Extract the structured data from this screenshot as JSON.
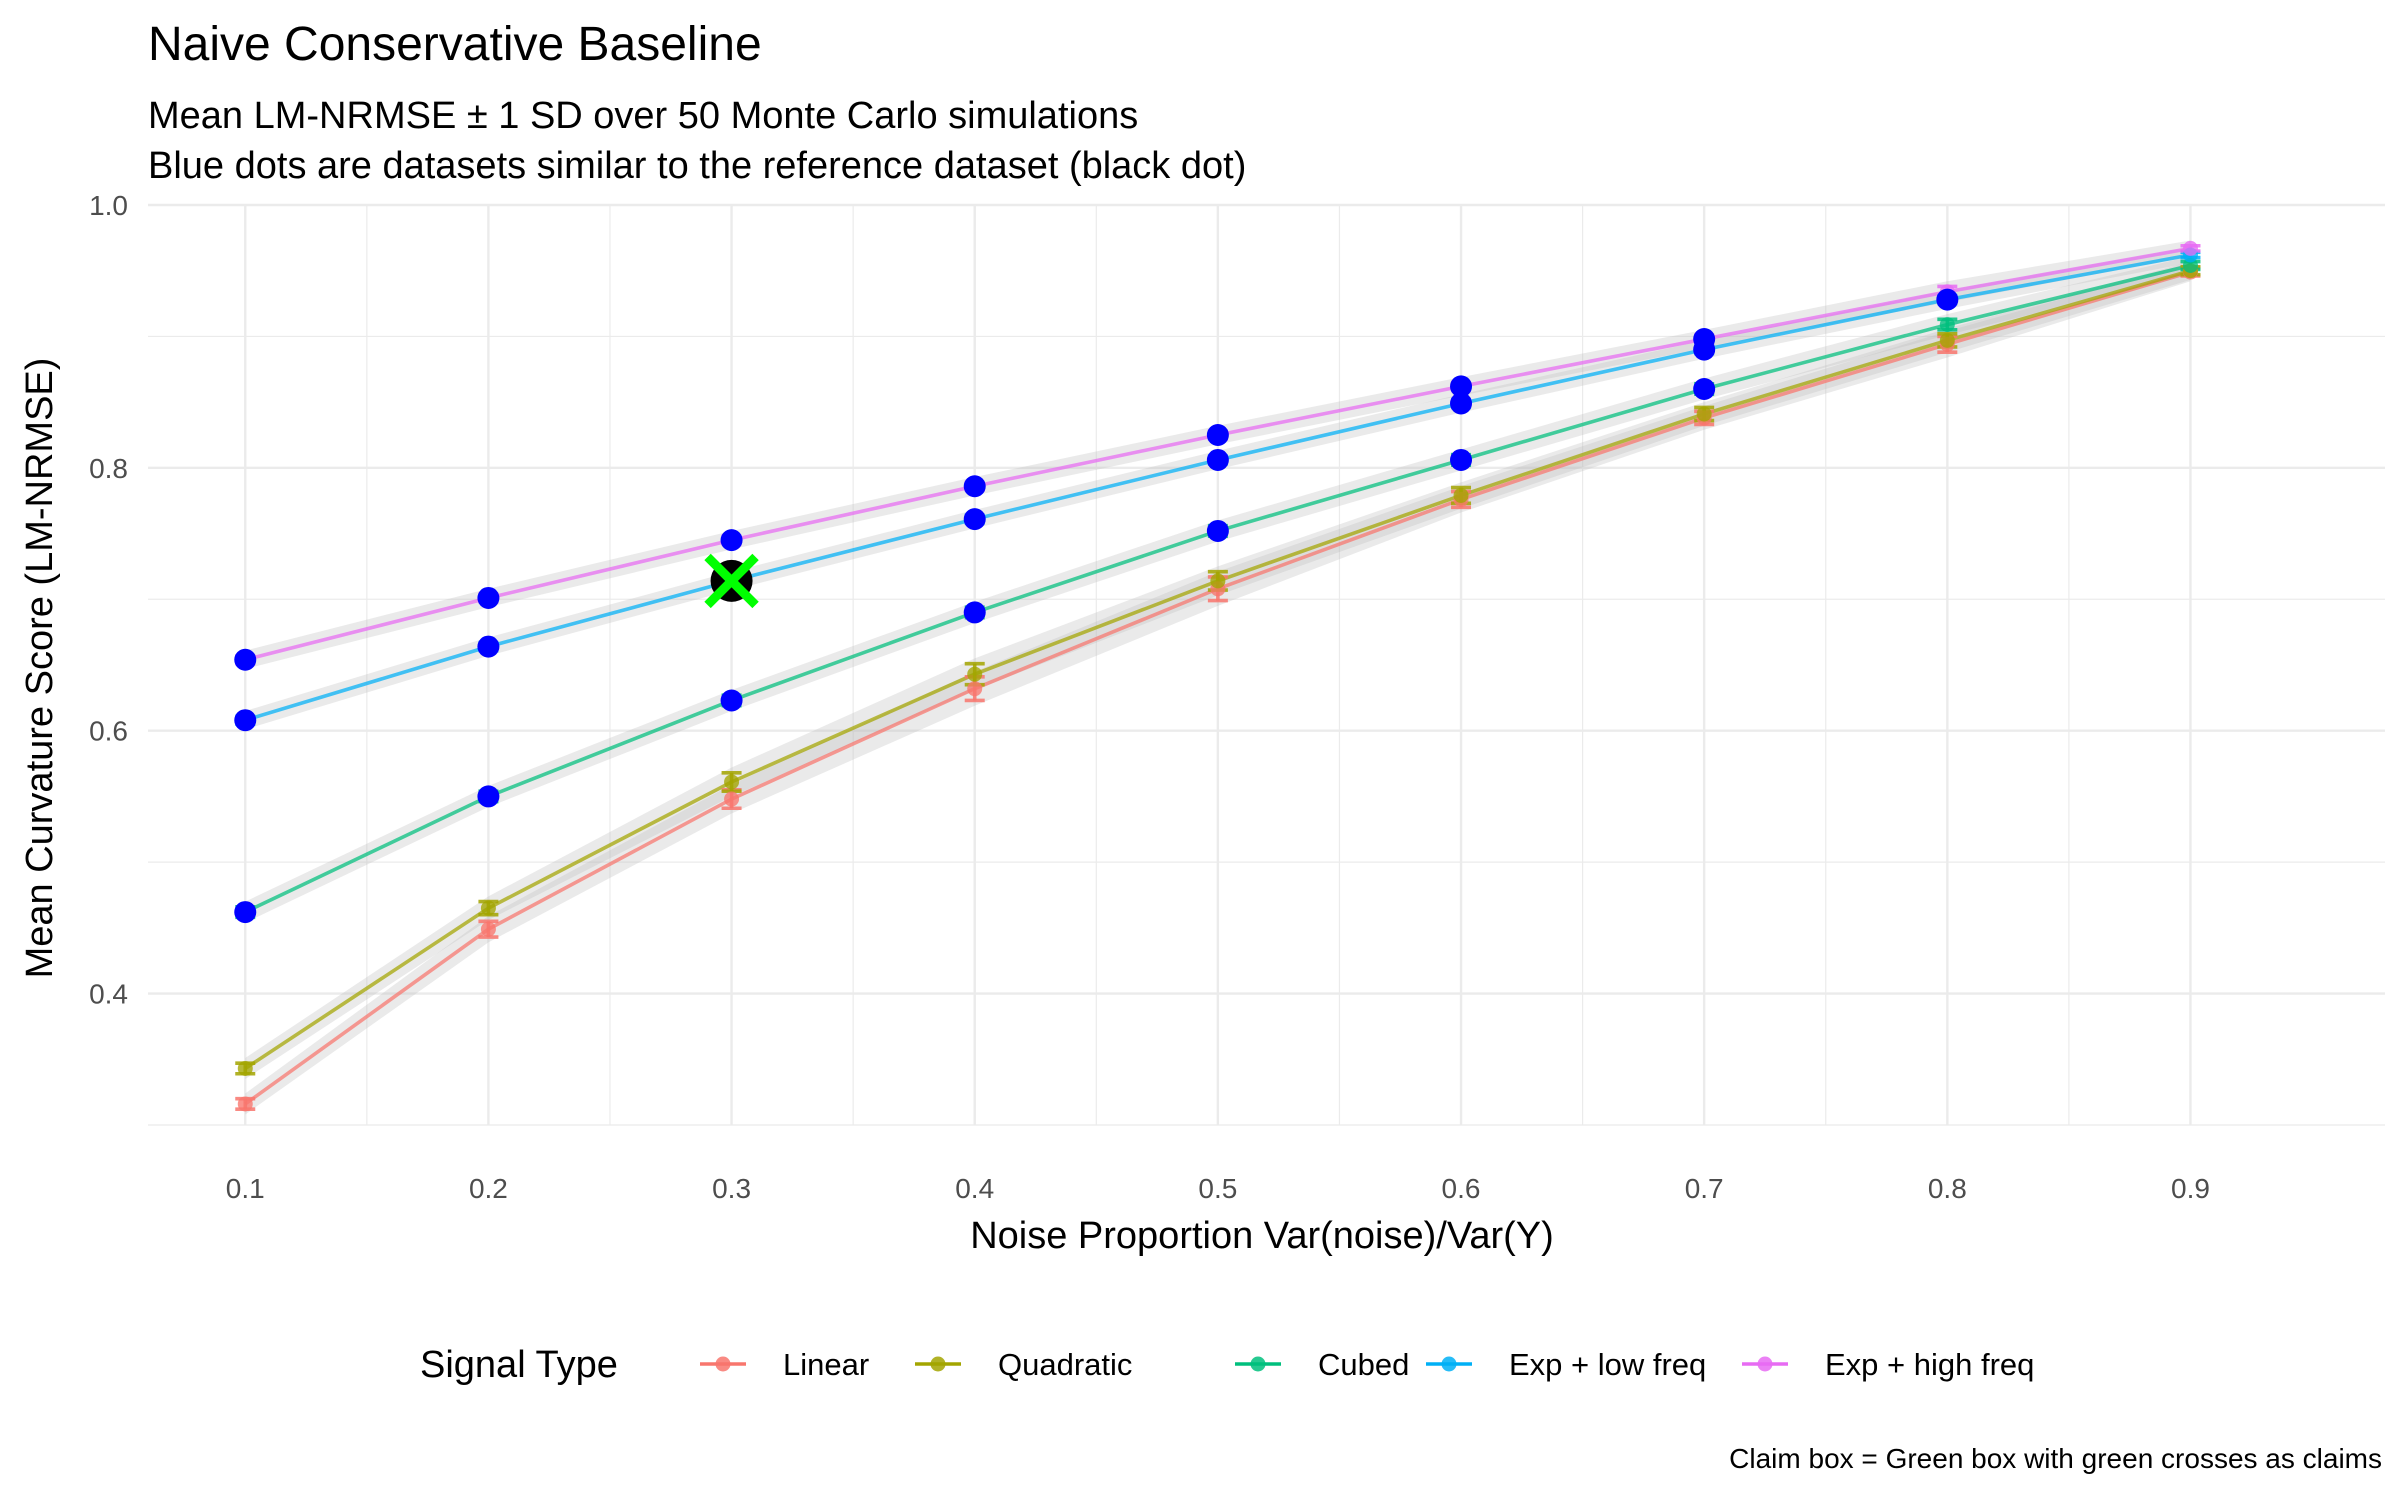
{
  "chart_data": {
    "type": "line",
    "title": "Naive Conservative Baseline",
    "subtitle_lines": [
      "Mean LM-NRMSE ± 1 SD over 50 Monte Carlo simulations",
      "Blue dots are datasets similar to the reference dataset (black dot)"
    ],
    "xlabel": "Noise Proportion Var(noise)/Var(Y)",
    "ylabel": "Mean Curvature Score (LM-NRMSE)",
    "xlim": [
      0.06,
      0.98
    ],
    "ylim": [
      0.3,
      1.0
    ],
    "x_ticks": [
      0.1,
      0.2,
      0.3,
      0.4,
      0.5,
      0.6,
      0.7,
      0.8,
      0.9
    ],
    "x_tick_labels": [
      "0.1",
      "0.2",
      "0.3",
      "0.4",
      "0.5",
      "0.6",
      "0.7",
      "0.8",
      "0.9"
    ],
    "y_ticks": [
      0.4,
      0.6,
      0.8,
      1.0
    ],
    "y_tick_labels": [
      "0.4",
      "0.6",
      "0.8",
      "1.0"
    ],
    "grid": true,
    "x": [
      0.1,
      0.2,
      0.3,
      0.4,
      0.5,
      0.6,
      0.7,
      0.8,
      0.9
    ],
    "series": [
      {
        "name": "Linear",
        "color": "#F8766D",
        "values": [
          0.316,
          0.449,
          0.548,
          0.632,
          0.708,
          0.776,
          0.838,
          0.894,
          0.949
        ],
        "sd": [
          0.004,
          0.006,
          0.007,
          0.009,
          0.009,
          0.006,
          0.005,
          0.006,
          0.003
        ]
      },
      {
        "name": "Quadratic",
        "color": "#A3A500",
        "values": [
          0.343,
          0.465,
          0.561,
          0.643,
          0.714,
          0.779,
          0.841,
          0.897,
          0.95
        ],
        "sd": [
          0.004,
          0.005,
          0.007,
          0.008,
          0.007,
          0.006,
          0.005,
          0.005,
          0.003
        ]
      },
      {
        "name": "Cubed",
        "color": "#00BF7D",
        "values": [
          0.462,
          0.55,
          0.623,
          0.69,
          0.752,
          0.806,
          0.86,
          0.909,
          0.954
        ],
        "sd": [
          0.004,
          0.004,
          0.004,
          0.004,
          0.004,
          0.004,
          0.004,
          0.004,
          0.003
        ]
      },
      {
        "name": "Exp + low freq",
        "color": "#00B0F6",
        "values": [
          0.608,
          0.664,
          0.714,
          0.761,
          0.806,
          0.849,
          0.89,
          0.928,
          0.962
        ],
        "sd": [
          0.003,
          0.003,
          0.003,
          0.003,
          0.003,
          0.003,
          0.003,
          0.003,
          0.002
        ]
      },
      {
        "name": "Exp + high freq",
        "color": "#E76BF3",
        "values": [
          0.654,
          0.701,
          0.745,
          0.786,
          0.825,
          0.862,
          0.898,
          0.934,
          0.967
        ],
        "sd": [
          0.003,
          0.003,
          0.003,
          0.003,
          0.003,
          0.003,
          0.003,
          0.004,
          0.002
        ]
      }
    ],
    "similar_points": [
      {
        "series": "Linear",
        "x": []
      },
      {
        "series": "Quadratic",
        "x": []
      },
      {
        "series": "Cubed",
        "x": [
          0.1,
          0.2,
          0.3,
          0.4,
          0.5,
          0.6,
          0.7
        ]
      },
      {
        "series": "Exp + low freq",
        "x": [
          0.1,
          0.2,
          0.3,
          0.4,
          0.5,
          0.6,
          0.7,
          0.8
        ]
      },
      {
        "series": "Exp + high freq",
        "x": [
          0.1,
          0.2,
          0.3,
          0.4,
          0.5,
          0.6,
          0.7
        ]
      }
    ],
    "similar_point_color": "#0000FF",
    "reference_point": {
      "x": 0.3,
      "y": 0.714,
      "color": "#000000"
    },
    "claims": [
      {
        "x": 0.3,
        "y": 0.714,
        "color": "#00FF00"
      }
    ],
    "legend": {
      "title": "Signal Type",
      "placement": "bottom",
      "entries": [
        "Linear",
        "Quadratic",
        "Cubed",
        "Exp + low freq",
        "Exp + high freq"
      ]
    },
    "caption": "Claim box = Green box with green crosses as claims"
  }
}
